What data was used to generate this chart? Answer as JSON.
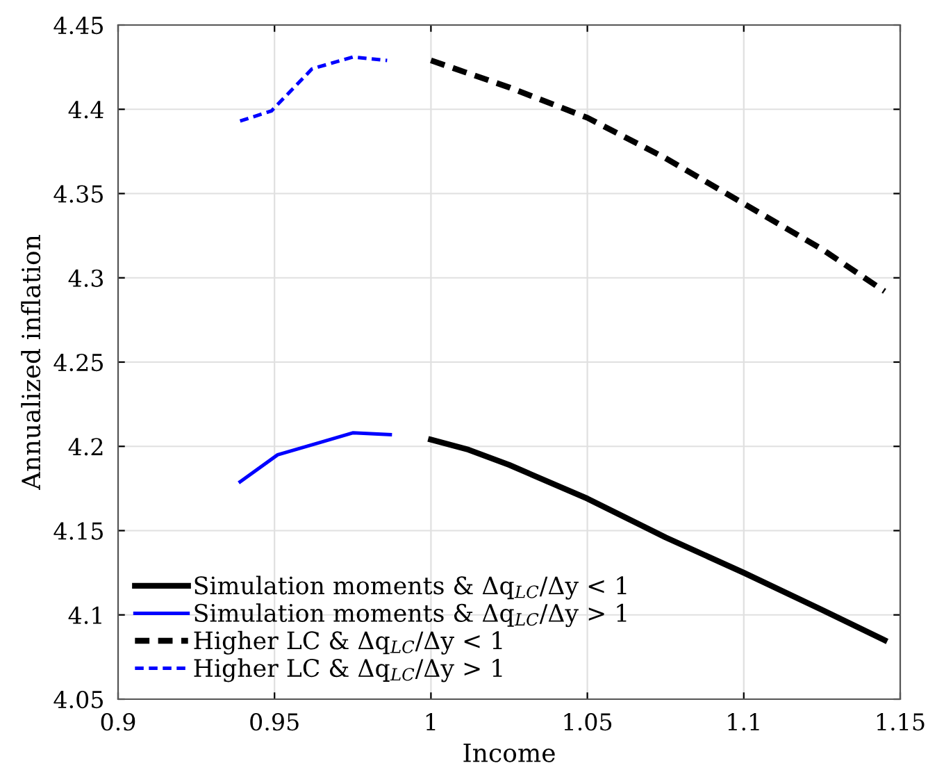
{
  "chart_data": {
    "type": "line",
    "xlabel": "Income",
    "ylabel": "Annualized inflation",
    "xlim": [
      0.9,
      1.15
    ],
    "xticks": [
      0.9,
      0.95,
      1,
      1.05,
      1.1,
      1.15
    ],
    "ylim": [
      4.05,
      4.45
    ],
    "yticks": [
      4.05,
      4.1,
      4.15,
      4.2,
      4.25,
      4.3,
      4.35,
      4.4,
      4.45
    ],
    "grid": true,
    "legend": "bottom left",
    "series": [
      {
        "name": "Simulation moments & Δq$_{LC}$/Δy < 1",
        "color": "#000000",
        "line_style": "solid",
        "x": [
          1.0,
          1.012,
          1.025,
          1.05,
          1.075,
          1.1,
          1.125,
          1.145
        ],
        "values": [
          4.204,
          4.198,
          4.189,
          4.169,
          4.146,
          4.125,
          4.103,
          4.085
        ]
      },
      {
        "name": "Simulation moments & Δq$_{LC}$/Δy > 1",
        "color": "#0000ff",
        "line_style": "solid",
        "x": [
          0.939,
          0.951,
          0.964,
          0.975,
          0.987
        ],
        "values": [
          4.179,
          4.195,
          4.202,
          4.208,
          4.207
        ]
      },
      {
        "name": "Higher LC & Δq$_{LC}$/Δy < 1",
        "color": "#000000",
        "line_style": "dashed",
        "x": [
          1.0,
          1.025,
          1.05,
          1.075,
          1.1,
          1.125,
          1.145
        ],
        "values": [
          4.429,
          4.413,
          4.395,
          4.371,
          4.344,
          4.317,
          4.292
        ]
      },
      {
        "name": "Higher LC & Δq$_{LC}$/Δy > 1",
        "color": "#0000ff",
        "line_style": "dashed",
        "x": [
          0.939,
          0.949,
          0.962,
          0.975,
          0.986
        ],
        "values": [
          4.393,
          4.399,
          4.424,
          4.431,
          4.429
        ]
      }
    ]
  }
}
